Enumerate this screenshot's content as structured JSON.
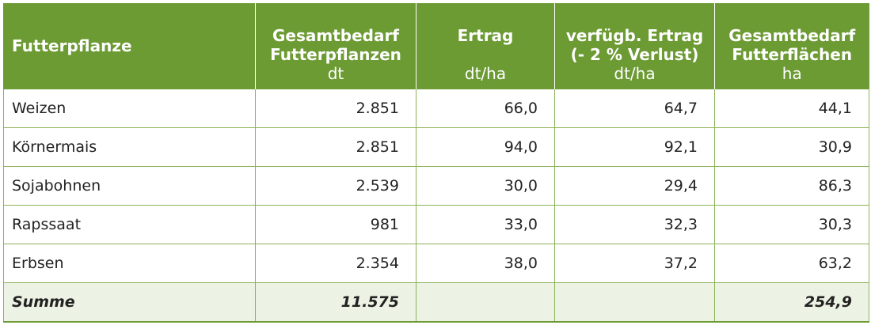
{
  "header": {
    "col0": {
      "label": "Futterpflanze"
    },
    "col1": {
      "title": "Gesamtbedarf\nFutterpflanzen",
      "unit": "dt"
    },
    "col2": {
      "title": "Ertrag",
      "unit": "dt/ha"
    },
    "col3": {
      "title": "verfügb. Ertrag\n(- 2 % Verlust)",
      "unit": "dt/ha"
    },
    "col4": {
      "title": "Gesamtbedarf\nFutterflächen",
      "unit": "ha"
    }
  },
  "rows": [
    {
      "name": "Weizen",
      "bedarf": "2.851",
      "ertrag": "66,0",
      "verfuegb": "64,7",
      "flaeche": "44,1"
    },
    {
      "name": "Körnermais",
      "bedarf": "2.851",
      "ertrag": "94,0",
      "verfuegb": "92,1",
      "flaeche": "30,9"
    },
    {
      "name": "Sojabohnen",
      "bedarf": "2.539",
      "ertrag": "30,0",
      "verfuegb": "29,4",
      "flaeche": "86,3"
    },
    {
      "name": "Rapssaat",
      "bedarf": "981",
      "ertrag": "33,0",
      "verfuegb": "32,3",
      "flaeche": "30,3"
    },
    {
      "name": "Erbsen",
      "bedarf": "2.354",
      "ertrag": "38,0",
      "verfuegb": "37,2",
      "flaeche": "63,2"
    }
  ],
  "summary": {
    "label": "Summe",
    "bedarf": "11.575",
    "ertrag": "",
    "verfuegb": "",
    "flaeche": "254,9"
  },
  "colors": {
    "header_bg": "#6c9a33",
    "border": "#8db15a",
    "summary_bg": "#edf3e4"
  }
}
